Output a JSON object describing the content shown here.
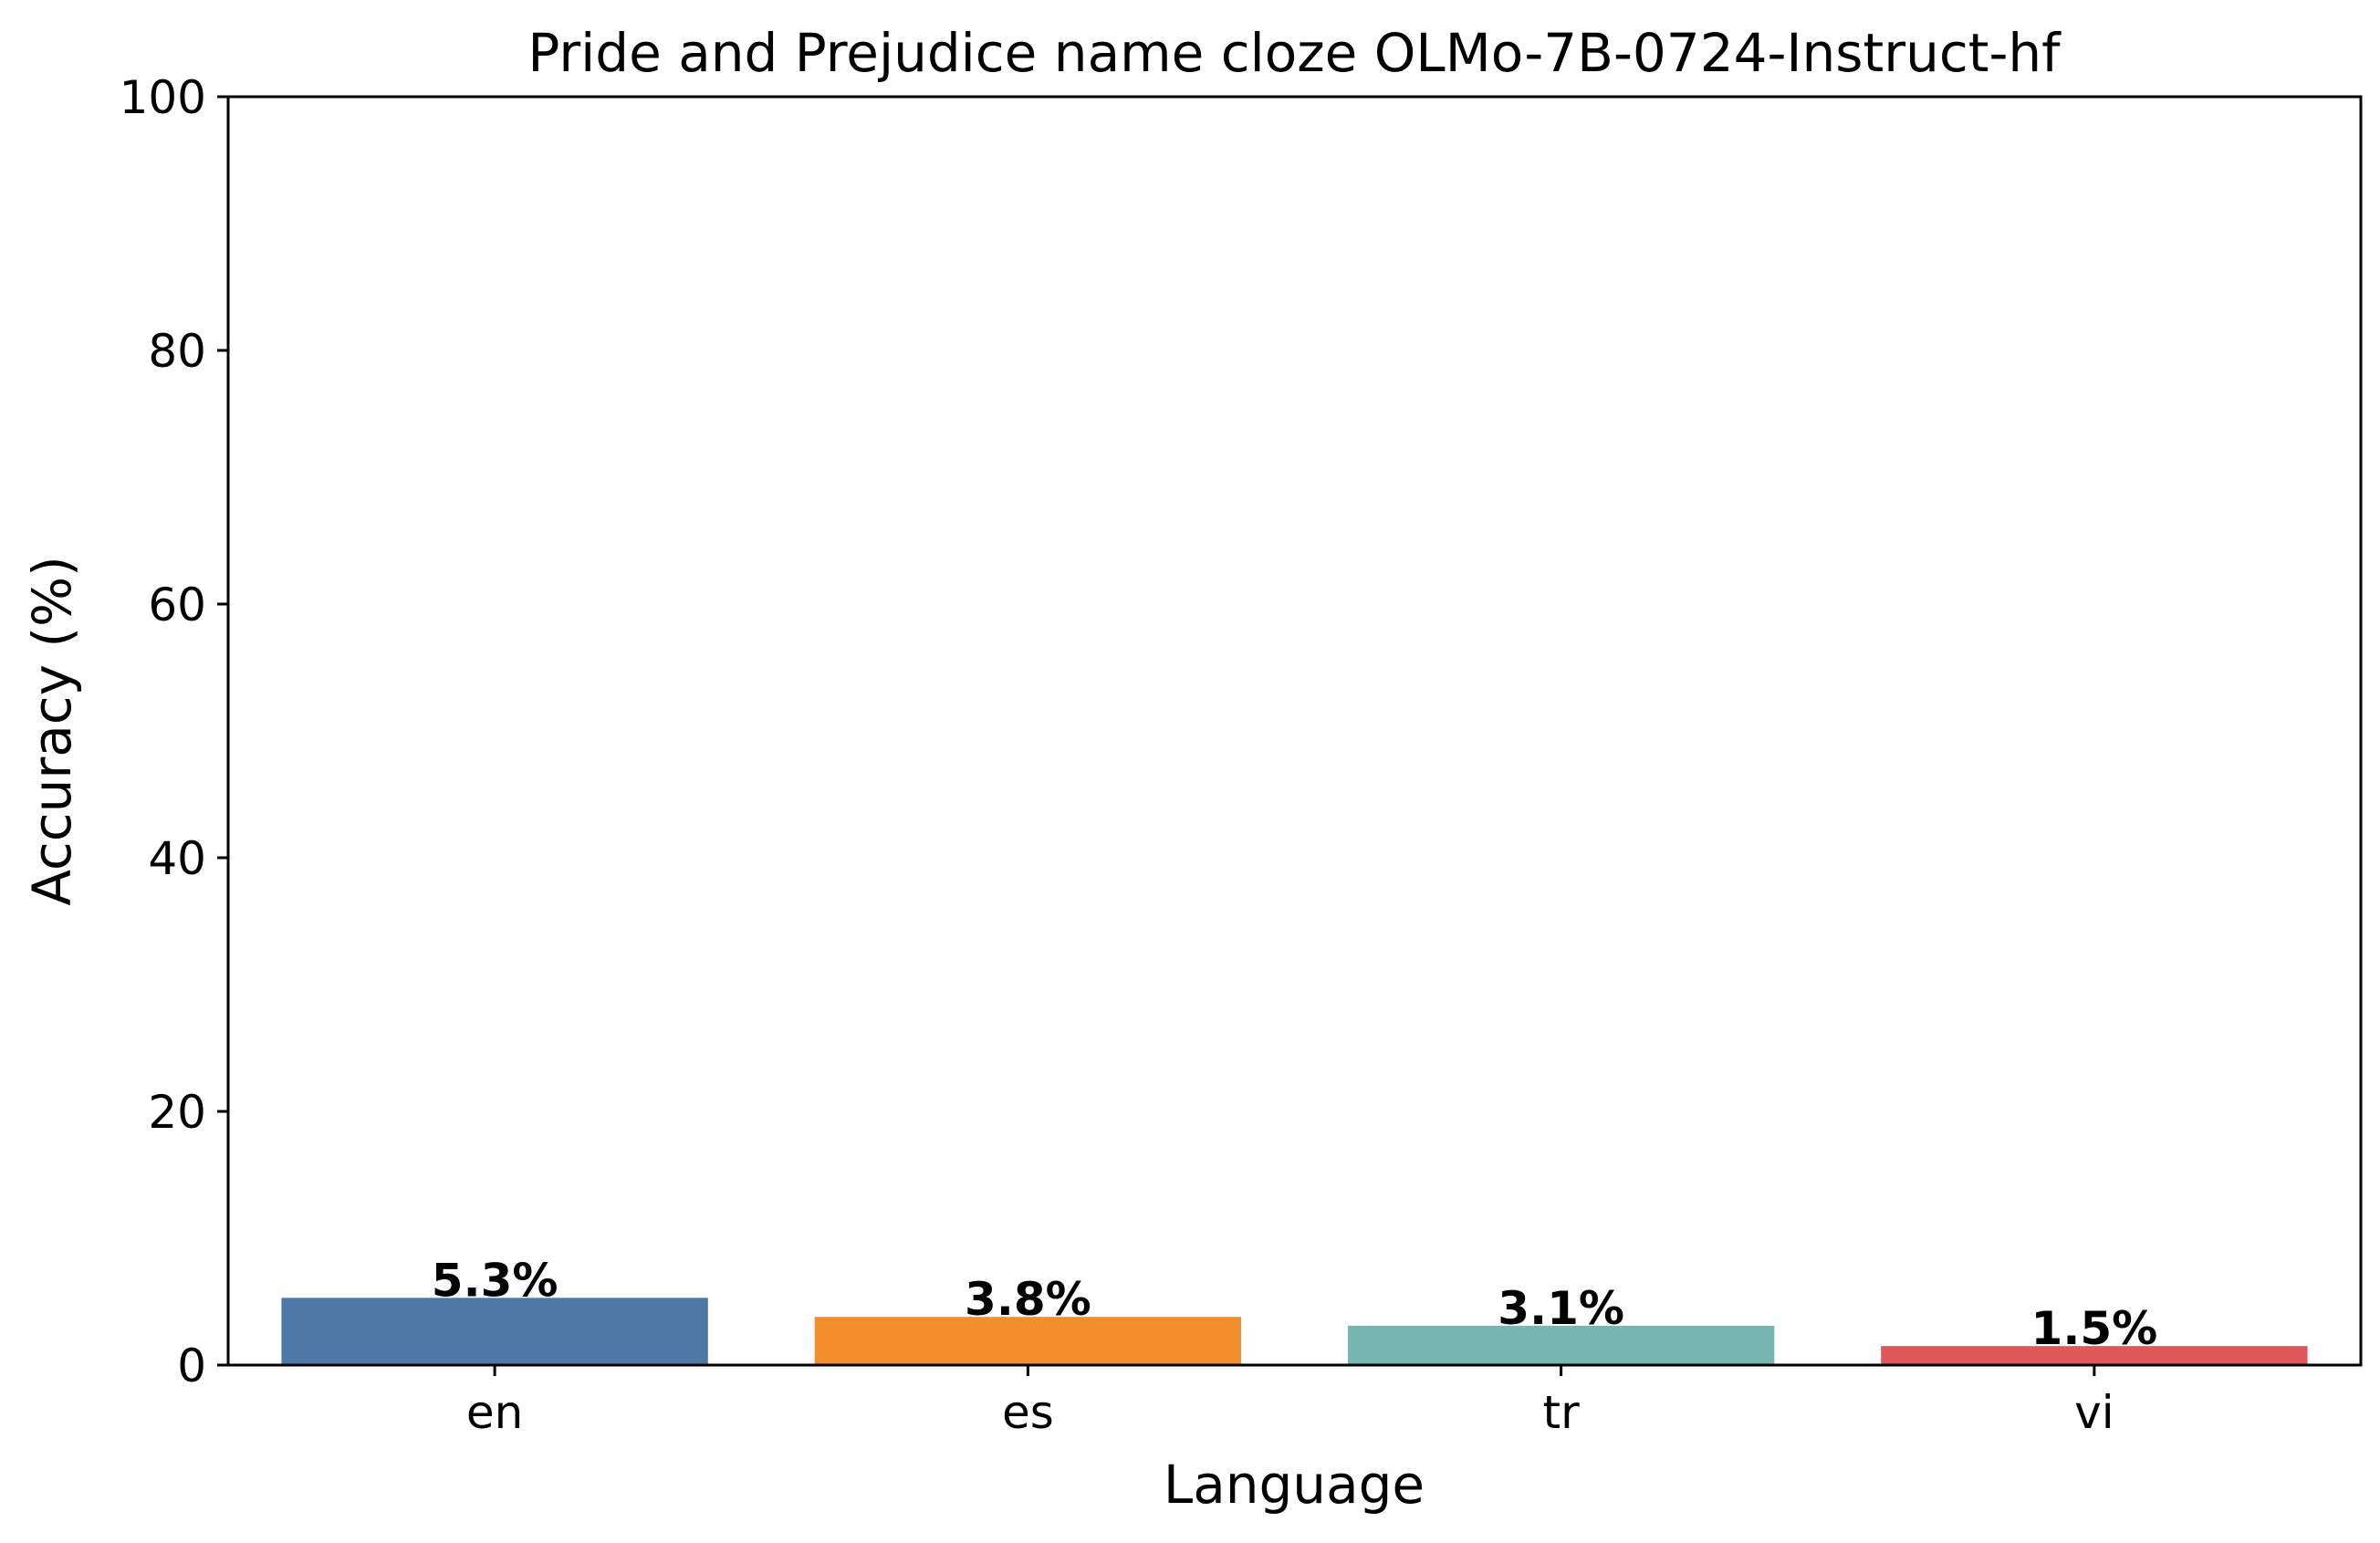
{
  "chart_data": {
    "type": "bar",
    "title": "Pride and Prejudice name cloze OLMo-7B-0724-Instruct-hf",
    "xlabel": "Language",
    "ylabel": "Accuracy (%)",
    "categories": [
      "en",
      "es",
      "tr",
      "vi"
    ],
    "values": [
      5.3,
      3.8,
      3.1,
      1.5
    ],
    "value_labels": [
      "5.3%",
      "3.8%",
      "3.1%",
      "1.5%"
    ],
    "colors": [
      "#4e79a7",
      "#f28e2b",
      "#76b7b2",
      "#e15759"
    ],
    "ylim": [
      0,
      100
    ],
    "yticks": [
      0,
      20,
      40,
      60,
      80,
      100
    ],
    "ytick_labels": [
      "0",
      "20",
      "40",
      "60",
      "80",
      "100"
    ],
    "grid": false,
    "legend": "none"
  }
}
